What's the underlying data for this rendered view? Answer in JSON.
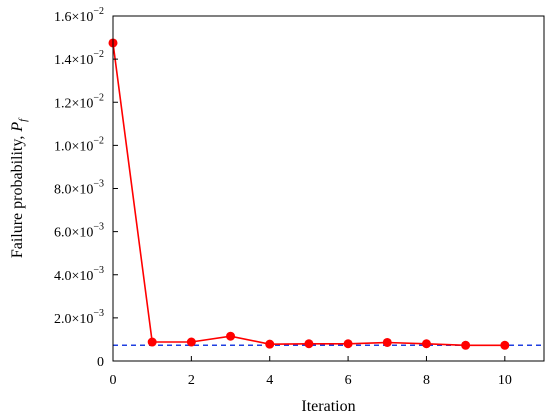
{
  "chart_data": {
    "type": "line",
    "xlabel": "Iteration",
    "ylabel": "Failure probability, ",
    "ylabel_symbol": "P",
    "ylabel_subscript": "f",
    "xlim": [
      0,
      11
    ],
    "ylim": [
      0,
      0.016
    ],
    "x_ticks": [
      0,
      2,
      4,
      6,
      8,
      10
    ],
    "x_tick_labels": [
      "0",
      "2",
      "4",
      "6",
      "8",
      "10"
    ],
    "y_ticks": [
      {
        "value": 0,
        "mantissa": "0",
        "exponent": ""
      },
      {
        "value": 0.002,
        "mantissa": "2.0×10",
        "exponent": "−3"
      },
      {
        "value": 0.004,
        "mantissa": "4.0×10",
        "exponent": "−3"
      },
      {
        "value": 0.006,
        "mantissa": "6.0×10",
        "exponent": "−3"
      },
      {
        "value": 0.008,
        "mantissa": "8.0×10",
        "exponent": "−3"
      },
      {
        "value": 0.01,
        "mantissa": "1.0×10",
        "exponent": "−2"
      },
      {
        "value": 0.012,
        "mantissa": "1.2×10",
        "exponent": "−2"
      },
      {
        "value": 0.014,
        "mantissa": "1.4×10",
        "exponent": "−2"
      },
      {
        "value": 0.016,
        "mantissa": "1.6×10",
        "exponent": "−2"
      }
    ],
    "grid": false,
    "series": [
      {
        "color": "#ff0000",
        "marker": "circle",
        "x": [
          0,
          1,
          2,
          3,
          4,
          5,
          6,
          7,
          8,
          9,
          10
        ],
        "y": [
          0.01475,
          0.00088,
          0.00088,
          0.00115,
          0.00078,
          0.0008,
          0.0008,
          0.00086,
          0.0008,
          0.00073,
          0.00073
        ]
      }
    ],
    "reference_line": {
      "y": 0.00073,
      "color": "#1f3fe0",
      "style": "dashed"
    }
  }
}
